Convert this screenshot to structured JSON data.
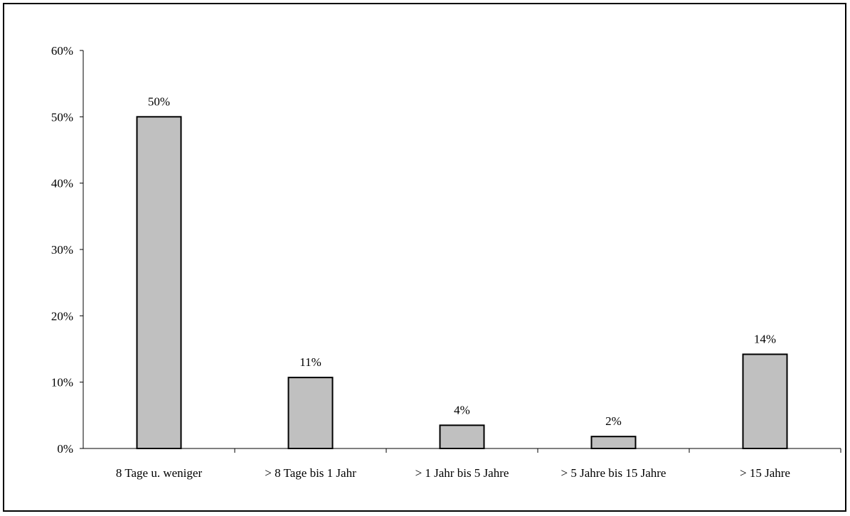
{
  "chart_data": {
    "type": "bar",
    "title": "",
    "xlabel": "",
    "ylabel": "",
    "categories": [
      "8 Tage u. weniger",
      "> 8 Tage bis 1 Jahr",
      "> 1 Jahr bis 5 Jahre",
      "> 5 Jahre bis 15 Jahre",
      "> 15 Jahre"
    ],
    "values": [
      50,
      10.7,
      3.5,
      1.8,
      14.2
    ],
    "data_labels": [
      "50%",
      "11%",
      "4%",
      "2%",
      "14%"
    ],
    "ylim": [
      0,
      60
    ],
    "yticks": [
      0,
      10,
      20,
      30,
      40,
      50,
      60
    ],
    "ytick_labels": [
      "0%",
      "10%",
      "20%",
      "30%",
      "40%",
      "50%",
      "60%"
    ],
    "grid": false,
    "legend": "none",
    "bar_color": "#c0c0c0",
    "bar_edge_color": "#000000"
  }
}
